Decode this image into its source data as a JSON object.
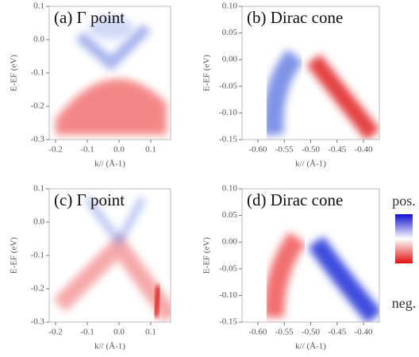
{
  "chart_data": [
    {
      "type": "image",
      "title": "(a)  Γ point",
      "xlabel": "k// (Å-1)",
      "ylabel": "E-EF (eV)",
      "xlim": [
        -0.22,
        0.1625
      ],
      "ylim": [
        -0.3,
        0.1
      ],
      "xticks": [
        -0.2,
        -0.1,
        {
          "value": 0,
          "label": "0.0"
        },
        0.1
      ],
      "yticks": [
        0.1,
        {
          "value": 0,
          "label": "0.0"
        },
        -0.1,
        -0.2,
        -0.3
      ]
    },
    {
      "type": "image",
      "title": "(b) Dirac cone",
      "xlabel": "k// (Å-1)",
      "ylabel": "E-EF (eV)",
      "xlim": [
        -0.63,
        -0.37
      ],
      "ylim": [
        -0.15,
        0.1
      ],
      "xticks": [
        {
          "value": -0.6,
          "label": "-0.60"
        },
        -0.55,
        {
          "value": -0.5,
          "label": "-0.50"
        },
        -0.45,
        {
          "value": -0.4,
          "label": "-0.40"
        }
      ],
      "yticks": [
        {
          "value": 0.1,
          "label": "0.10"
        },
        0.05,
        {
          "value": 0,
          "label": "0.00"
        },
        -0.05,
        {
          "value": -0.1,
          "label": "-0.10"
        },
        -0.15
      ]
    },
    {
      "type": "image",
      "title": "(c)  Γ point",
      "xlabel": "k// (Å-1)",
      "ylabel": "E-EF (eV)",
      "xlim": [
        -0.22,
        0.1625
      ],
      "ylim": [
        -0.3,
        0.1
      ],
      "xticks": [
        -0.2,
        -0.1,
        {
          "value": 0,
          "label": "0.0"
        },
        0.1
      ],
      "yticks": [
        0.1,
        {
          "value": 0,
          "label": "0.0"
        },
        -0.1,
        -0.2,
        -0.3
      ]
    },
    {
      "type": "image",
      "title": "(d) Dirac cone",
      "xlabel": "k// (Å-1)",
      "ylabel": "E-EF (eV)",
      "xlim": [
        -0.63,
        -0.37
      ],
      "ylim": [
        -0.15,
        0.1
      ],
      "xticks": [
        {
          "value": -0.6,
          "label": "-0.60"
        },
        -0.55,
        {
          "value": -0.5,
          "label": "-0.50"
        },
        -0.45,
        {
          "value": -0.4,
          "label": "-0.40"
        }
      ],
      "yticks": [
        {
          "value": 0.1,
          "label": "0.10"
        },
        0.05,
        {
          "value": 0,
          "label": "0.00"
        },
        -0.05,
        {
          "value": -0.1,
          "label": "-0.10"
        },
        -0.15
      ]
    }
  ],
  "colorbar": {
    "max_label": "pos.",
    "min_label": "neg."
  }
}
